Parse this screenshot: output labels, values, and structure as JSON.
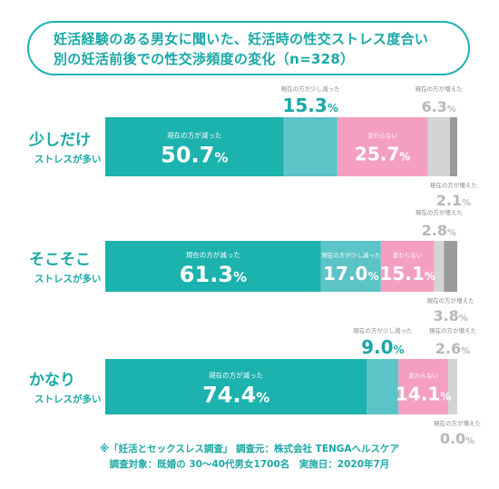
{
  "title": {
    "line1": "妊活経験のある男女に聞いた、妊活時の性交ストレス度合い",
    "line2": "別の妊活前後での性交渉頻度の変化（n=328）"
  },
  "footer": {
    "line1": "※「妊活とセックスレス調査」 調査元：株式会社 TENGAヘルスケア",
    "line2": "調査対象：既婚の 30～40代男女1700名　実施日：2020年7月"
  },
  "colors": {
    "teal": "#1cb2ad",
    "light_teal": "#5cc3c7",
    "pink": "#f49fc0",
    "light_gray": "#d4d4d4",
    "dark_gray": "#9a9a9a",
    "label_teal": "#1aa8a6",
    "label_gray": "#b8b8b8"
  },
  "chart_data": {
    "type": "bar",
    "orientation": "horizontal",
    "stacked": true,
    "unit": "%",
    "categories": [
      [
        "少しだけ",
        "ストレスが多い"
      ],
      [
        "そこそこ",
        "ストレスが多い"
      ],
      [
        "かなり",
        "ストレスが多い"
      ]
    ],
    "series": [
      {
        "name": "現在の方が減った",
        "values": [
          50.7,
          61.3,
          74.4
        ]
      },
      {
        "name": "現在の方が少し減った",
        "values": [
          15.3,
          17.0,
          9.0
        ]
      },
      {
        "name": "変わらない",
        "values": [
          25.7,
          15.1,
          14.1
        ]
      },
      {
        "name": "現在の方が増えた",
        "values": [
          6.3,
          2.8,
          2.6
        ]
      },
      {
        "name": "現在の方が増えた",
        "values": [
          2.1,
          3.8,
          0.0
        ]
      }
    ]
  }
}
